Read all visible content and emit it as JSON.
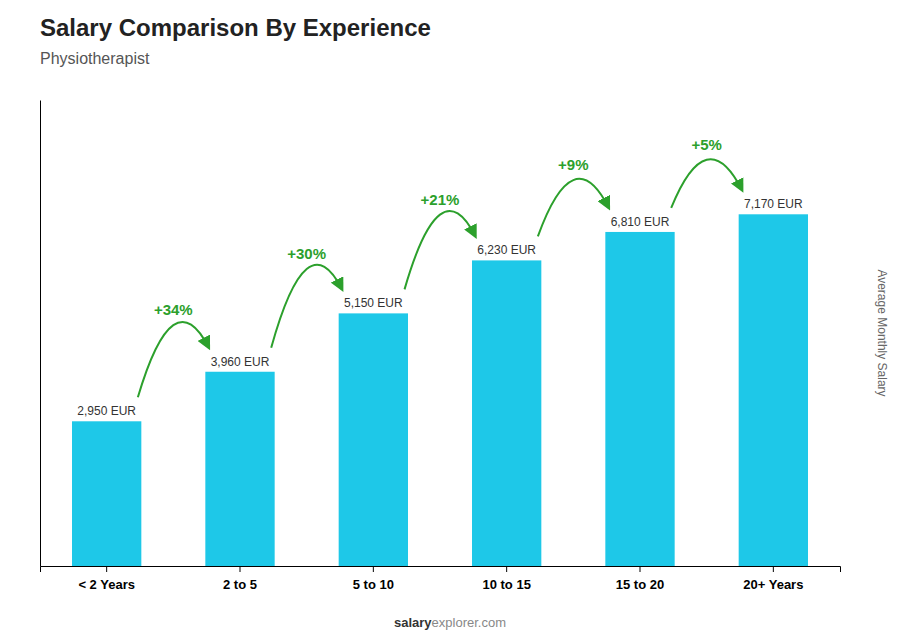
{
  "chart_data": {
    "type": "bar",
    "title": "Salary Comparison By Experience",
    "subtitle": "Physiotherapist",
    "categories": [
      "< 2 Years",
      "2 to 5",
      "5 to 10",
      "10 to 15",
      "15 to 20",
      "20+ Years"
    ],
    "values": [
      2950,
      3960,
      5150,
      6230,
      6810,
      7170
    ],
    "value_labels": [
      "2,950 EUR",
      "3,960 EUR",
      "5,150 EUR",
      "6,230 EUR",
      "6,810 EUR",
      "7,170 EUR"
    ],
    "data_labels": true,
    "annotations": [
      "+34%",
      "+30%",
      "+21%",
      "+9%",
      "+5%"
    ],
    "ylabel": "Average Monthly Salary",
    "watermark": [
      "salary",
      "explorer.com"
    ],
    "color": "#1ec8e8",
    "ylim": [
      0,
      9500
    ],
    "grid": false,
    "tick_labels": "x"
  }
}
